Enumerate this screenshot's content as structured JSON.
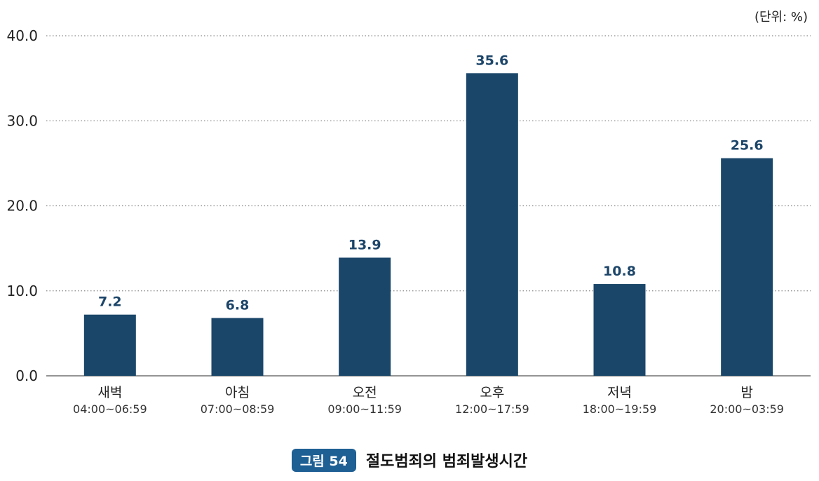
{
  "unit_label": "(단위: %)",
  "caption": {
    "badge": "그림 54",
    "title": "절도범죄의 범죄발생시간"
  },
  "colors": {
    "bar": "#1a4669",
    "value_label": "#1c4569",
    "badge": "#1e5f94"
  },
  "chart_data": {
    "type": "bar",
    "categories": [
      "새벽",
      "아침",
      "오전",
      "오후",
      "저녁",
      "밤"
    ],
    "category_subtitles": [
      "04:00~06:59",
      "07:00~08:59",
      "09:00~11:59",
      "12:00~17:59",
      "18:00~19:59",
      "20:00~03:59"
    ],
    "values": [
      7.2,
      6.8,
      13.9,
      35.6,
      10.8,
      25.6
    ],
    "value_labels": [
      "7.2",
      "6.8",
      "13.9",
      "35.6",
      "10.8",
      "25.6"
    ],
    "yticks": [
      "0.0",
      "10.0",
      "20.0",
      "30.0",
      "40.0"
    ],
    "ylim": [
      0,
      40
    ],
    "grid": "dotted horizontal",
    "title": "",
    "xlabel": "",
    "ylabel": ""
  }
}
